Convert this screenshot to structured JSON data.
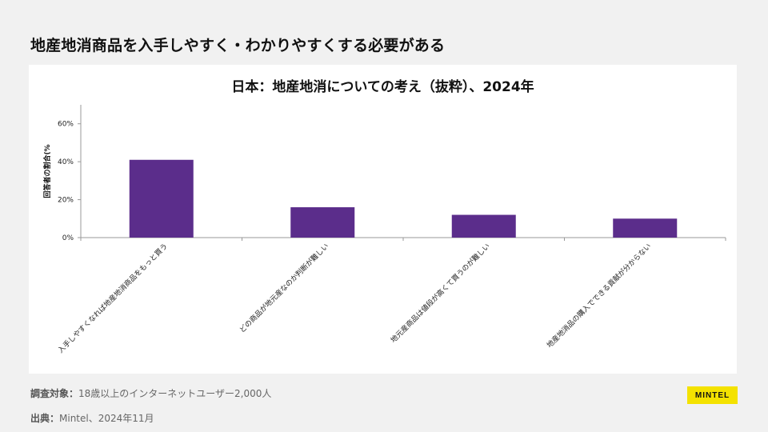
{
  "page": {
    "title": "地産地消商品を入手しやすく・わかりやすくする必要がある"
  },
  "chart_data": {
    "type": "bar",
    "title": "日本：地産地消についての考え（抜粋）、2024年",
    "ylabel": "回答者の割合(%",
    "categories": [
      "入手しやすくなれば地産地消商品をもっと買う",
      "どの商品が地元産なのか判断が難しい",
      "地元産商品は値段が高くて買うのが難しい",
      "地産地消品の購入でできる貢献が分からない"
    ],
    "values": [
      41,
      16,
      12,
      10
    ],
    "ylim": [
      0,
      70
    ],
    "yticks": [
      0,
      20,
      40,
      60
    ],
    "ytick_labels": [
      "0%",
      "20%",
      "40%",
      "60%"
    ],
    "bar_color": "#5b2d8b",
    "grid": false
  },
  "footer": {
    "sample_label": "調査対象：",
    "sample_text": "18歳以上のインターネットユーザー2,000人",
    "source_label": "出典：",
    "source_text": "Mintel、2024年11月",
    "logo_text": "MINTEL",
    "logo_color": "#f4e200"
  }
}
